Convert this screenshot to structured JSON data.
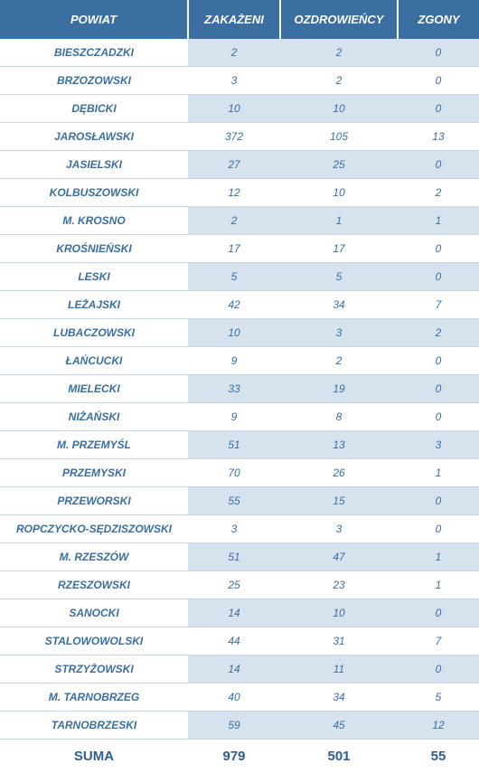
{
  "table": {
    "columns": [
      "POWIAT",
      "ZAKAŻENI",
      "OZDROWIEŃCY",
      "ZGONY"
    ],
    "rows": [
      [
        "BIESZCZADZKI",
        "2",
        "2",
        "0"
      ],
      [
        "BRZOZOWSKI",
        "3",
        "2",
        "0"
      ],
      [
        "DĘBICKI",
        "10",
        "10",
        "0"
      ],
      [
        "JAROSŁAWSKI",
        "372",
        "105",
        "13"
      ],
      [
        "JASIELSKI",
        "27",
        "25",
        "0"
      ],
      [
        "KOLBUSZOWSKI",
        "12",
        "10",
        "2"
      ],
      [
        "M. KROSNO",
        "2",
        "1",
        "1"
      ],
      [
        "KROŚNIEŃSKI",
        "17",
        "17",
        "0"
      ],
      [
        "LESKI",
        "5",
        "5",
        "0"
      ],
      [
        "LEŻAJSKI",
        "42",
        "34",
        "7"
      ],
      [
        "LUBACZOWSKI",
        "10",
        "3",
        "2"
      ],
      [
        "ŁAŃCUCKI",
        "9",
        "2",
        "0"
      ],
      [
        "MIELECKI",
        "33",
        "19",
        "0"
      ],
      [
        "NIŻAŃSKI",
        "9",
        "8",
        "0"
      ],
      [
        "M. PRZEMYŚL",
        "51",
        "13",
        "3"
      ],
      [
        "PRZEMYSKI",
        "70",
        "26",
        "1"
      ],
      [
        "PRZEWORSKI",
        "55",
        "15",
        "0"
      ],
      [
        "ROPCZYCKO-SĘDZISZOWSKI",
        "3",
        "3",
        "0"
      ],
      [
        "M. RZESZÓW",
        "51",
        "47",
        "1"
      ],
      [
        "RZESZOWSKI",
        "25",
        "23",
        "1"
      ],
      [
        "SANOCKI",
        "14",
        "10",
        "0"
      ],
      [
        "STALOWOWOLSKI",
        "44",
        "31",
        "7"
      ],
      [
        "STRZYŻOWSKI",
        "14",
        "11",
        "0"
      ],
      [
        "M. TARNOBRZEG",
        "40",
        "34",
        "5"
      ],
      [
        "TARNOBRZESKI",
        "59",
        "45",
        "12"
      ]
    ],
    "footer": [
      "SUMA",
      "979",
      "501",
      "55"
    ]
  },
  "colors": {
    "header_bg": "#3b6fa1",
    "header_text": "#ffffff",
    "cell_text": "#3b6fa1",
    "stripe_bg": "#d6e3ef",
    "border": "#c7d6e6",
    "footer_text": "#2f5f92"
  }
}
